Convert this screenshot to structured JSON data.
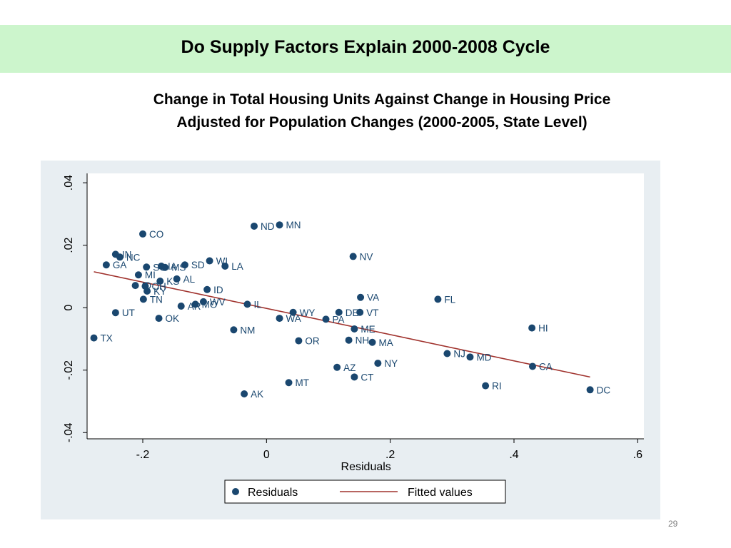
{
  "slide": {
    "title": "Do Supply Factors Explain 2000-2008 Cycle",
    "page_number": "29"
  },
  "colors": {
    "title_band": "#ccf5cc",
    "chart_background": "#e8eef2",
    "plot_background": "#ffffff",
    "marker": "#1a476f",
    "fit_line": "#a0322d"
  },
  "chart_data": {
    "type": "scatter",
    "title_line1": "Change in Total Housing Units Against Change in Housing Price",
    "title_line2": "Adjusted for Population Changes (2000-2005, State Level)",
    "xlabel": "Residuals",
    "ylabel": "",
    "xlim": [
      -0.29,
      0.61
    ],
    "ylim": [
      -0.042,
      0.043
    ],
    "xticks": [
      -0.2,
      0,
      0.2,
      0.4,
      0.6
    ],
    "xtick_labels": [
      "-.2",
      "0",
      ".2",
      ".4",
      ".6"
    ],
    "yticks": [
      -0.04,
      -0.02,
      0,
      0.02,
      0.04
    ],
    "ytick_labels": [
      "-.04",
      "-.02",
      "0",
      ".02",
      ".04"
    ],
    "grid": false,
    "legend": {
      "placement": "bottom",
      "entries": [
        "Residuals",
        "Fitted values"
      ]
    },
    "series": [
      {
        "name": "Residuals",
        "points": [
          {
            "label": "TX",
            "x": -0.279,
            "y": -0.0097
          },
          {
            "label": "GA",
            "x": -0.259,
            "y": 0.0137
          },
          {
            "label": "IN",
            "x": -0.244,
            "y": 0.0171
          },
          {
            "label": "UT",
            "x": -0.244,
            "y": -0.0016
          },
          {
            "label": "NC",
            "x": -0.237,
            "y": 0.0162
          },
          {
            "label": "MI",
            "x": -0.207,
            "y": 0.0105
          },
          {
            "label": "ID",
            "x": -0.212,
            "y": 0.0071
          },
          {
            "label": "CO",
            "x": -0.2,
            "y": 0.0236
          },
          {
            "label": "TN",
            "x": -0.199,
            "y": 0.0027
          },
          {
            "label": "SC",
            "x": -0.194,
            "y": 0.013
          },
          {
            "label": "KY",
            "x": -0.193,
            "y": 0.0053
          },
          {
            "label": "OH",
            "x": -0.196,
            "y": 0.0069
          },
          {
            "label": "OK",
            "x": -0.174,
            "y": -0.0034
          },
          {
            "label": "IA",
            "x": -0.17,
            "y": 0.0133
          },
          {
            "label": "KS",
            "x": -0.172,
            "y": 0.0085
          },
          {
            "label": "MS",
            "x": -0.164,
            "y": 0.0129
          },
          {
            "label": "AL",
            "x": -0.145,
            "y": 0.0092
          },
          {
            "label": "AR",
            "x": -0.138,
            "y": 0.0005
          },
          {
            "label": "SD",
            "x": -0.132,
            "y": 0.0137
          },
          {
            "label": "MO",
            "x": -0.115,
            "y": 0.0011
          },
          {
            "label": "WV",
            "x": -0.102,
            "y": 0.0019
          },
          {
            "label": "ID",
            "x": -0.096,
            "y": 0.0058
          },
          {
            "label": "WI",
            "x": -0.092,
            "y": 0.015
          },
          {
            "label": "LA",
            "x": -0.067,
            "y": 0.0133
          },
          {
            "label": "NM",
            "x": -0.053,
            "y": -0.0071
          },
          {
            "label": "AK",
            "x": -0.036,
            "y": -0.0276
          },
          {
            "label": "IL",
            "x": -0.031,
            "y": 0.0011
          },
          {
            "label": "ND",
            "x": -0.02,
            "y": 0.0261
          },
          {
            "label": "MN",
            "x": 0.021,
            "y": 0.0265
          },
          {
            "label": "WA",
            "x": 0.021,
            "y": -0.0034
          },
          {
            "label": "MT",
            "x": 0.036,
            "y": -0.024
          },
          {
            "label": "WY",
            "x": 0.043,
            "y": -0.0015
          },
          {
            "label": "OR",
            "x": 0.052,
            "y": -0.0106
          },
          {
            "label": "PA",
            "x": 0.096,
            "y": -0.0037
          },
          {
            "label": "AZ",
            "x": 0.114,
            "y": -0.0191
          },
          {
            "label": "DE",
            "x": 0.117,
            "y": -0.0015
          },
          {
            "label": "NH",
            "x": 0.133,
            "y": -0.0104
          },
          {
            "label": "NV",
            "x": 0.14,
            "y": 0.0164
          },
          {
            "label": "CT",
            "x": 0.142,
            "y": -0.0222
          },
          {
            "label": "ME",
            "x": 0.142,
            "y": -0.0068
          },
          {
            "label": "VT",
            "x": 0.151,
            "y": -0.0015
          },
          {
            "label": "VA",
            "x": 0.152,
            "y": 0.0033
          },
          {
            "label": "MA",
            "x": 0.171,
            "y": -0.0111
          },
          {
            "label": "NY",
            "x": 0.18,
            "y": -0.0178
          },
          {
            "label": "FL",
            "x": 0.277,
            "y": 0.0027
          },
          {
            "label": "NJ",
            "x": 0.292,
            "y": -0.0147
          },
          {
            "label": "MD",
            "x": 0.329,
            "y": -0.0158
          },
          {
            "label": "RI",
            "x": 0.354,
            "y": -0.025
          },
          {
            "label": "HI",
            "x": 0.429,
            "y": -0.0065
          },
          {
            "label": "CA",
            "x": 0.43,
            "y": -0.0188
          },
          {
            "label": "DC",
            "x": 0.523,
            "y": -0.0263
          }
        ]
      },
      {
        "name": "Fitted values",
        "line": [
          {
            "x": -0.279,
            "y": 0.0115
          },
          {
            "x": 0.523,
            "y": -0.0222
          }
        ]
      }
    ]
  }
}
